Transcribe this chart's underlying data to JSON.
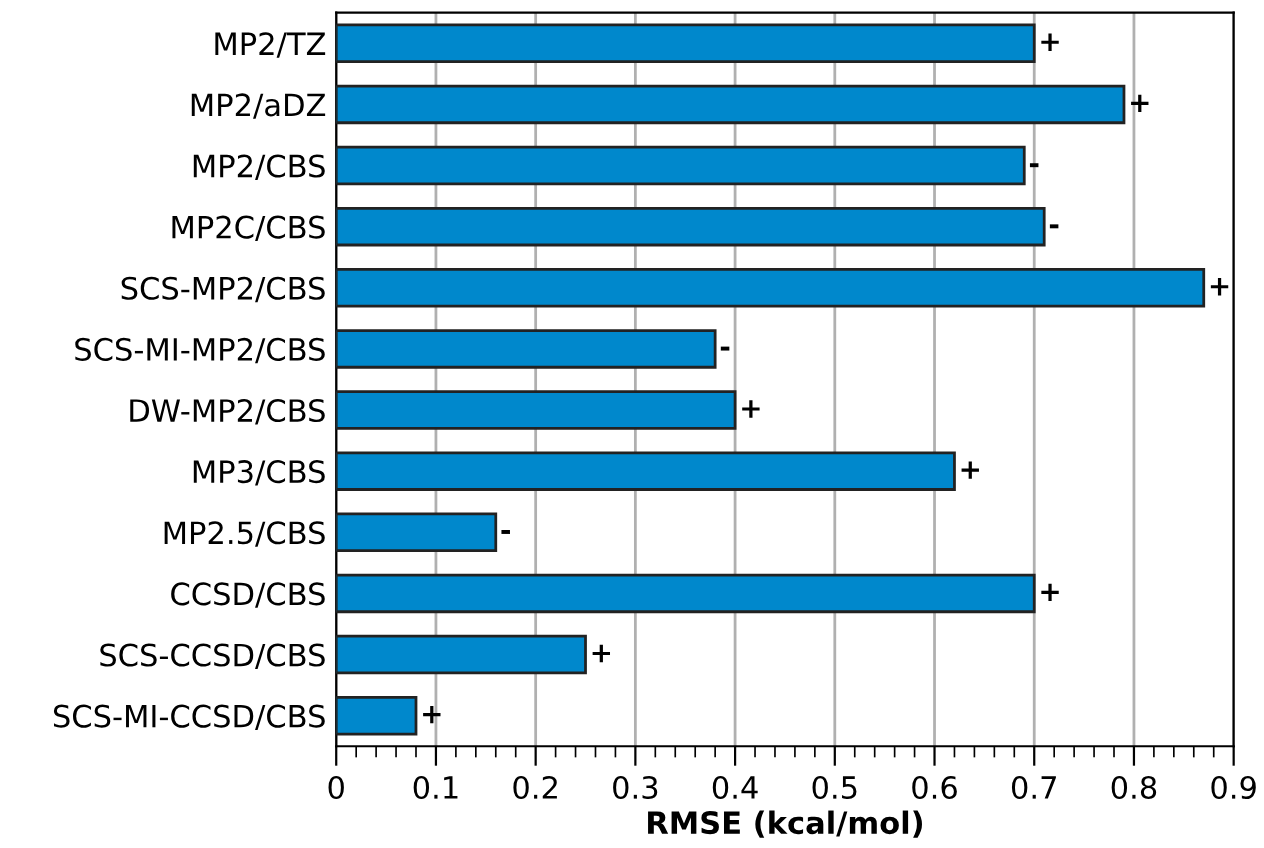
{
  "chart_data": {
    "type": "bar",
    "orientation": "horizontal",
    "xlabel": "RMSE (kcal/mol)",
    "categories": [
      "MP2/TZ",
      "MP2/aDZ",
      "MP2/CBS",
      "MP2C/CBS",
      "SCS-MP2/CBS",
      "SCS-MI-MP2/CBS",
      "DW-MP2/CBS",
      "MP3/CBS",
      "MP2.5/CBS",
      "CCSD/CBS",
      "SCS-CCSD/CBS",
      "SCS-MI-CCSD/CBS"
    ],
    "values": [
      0.7,
      0.79,
      0.69,
      0.71,
      0.87,
      0.38,
      0.4,
      0.62,
      0.16,
      0.7,
      0.25,
      0.08
    ],
    "value_labels": [
      "+",
      "+",
      "-",
      "-",
      "+",
      "-",
      "+",
      "+",
      "-",
      "+",
      "+",
      "+"
    ],
    "color": "#0088cc",
    "xlim": [
      0,
      0.9
    ],
    "xticks": [
      0,
      0.1,
      0.2,
      0.3,
      0.4,
      0.5,
      0.6,
      0.7,
      0.8,
      0.9
    ],
    "grid": "x",
    "legend": false
  }
}
